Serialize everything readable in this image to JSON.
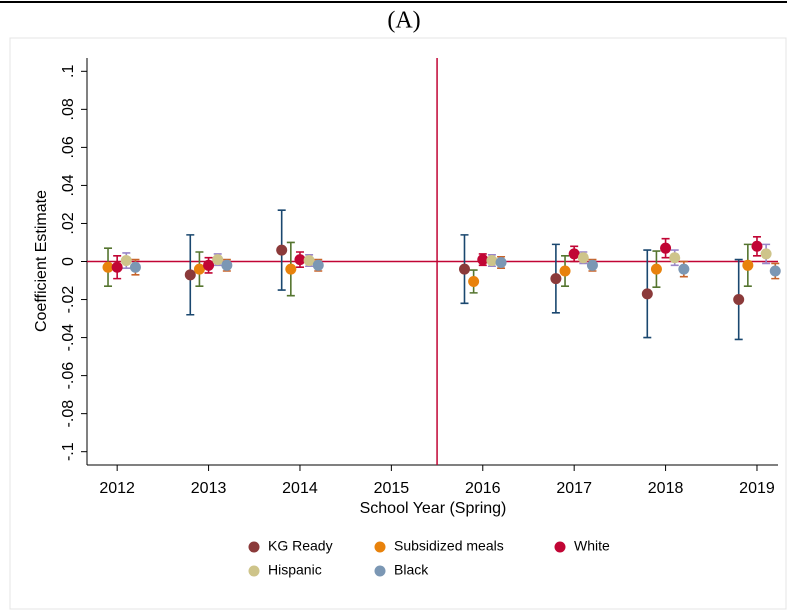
{
  "chart_data": {
    "type": "scatter",
    "title": "(A)",
    "x_label": "School Year (Spring)",
    "y_label": "Coefficient Estimate",
    "x": [
      2012,
      2013,
      2014,
      2015,
      2016,
      2017,
      2018,
      2019
    ],
    "xlim": [
      2011.67,
      2019.23
    ],
    "xticks": [
      2012,
      2013,
      2014,
      2015,
      2016,
      2017,
      2018,
      2019
    ],
    "ylim": [
      -0.107,
      0.107
    ],
    "yticks": [
      {
        "value": -0.1,
        "label": "-.1"
      },
      {
        "value": -0.08,
        "label": "-.08"
      },
      {
        "value": -0.06,
        "label": "-.06"
      },
      {
        "value": -0.04,
        "label": "-.04"
      },
      {
        "value": -0.02,
        "label": "-.02"
      },
      0,
      {
        "value": 0.02,
        "label": ".02"
      },
      {
        "value": 0.04,
        "label": ".04"
      },
      {
        "value": 0.06,
        "label": ".06"
      },
      {
        "value": 0.08,
        "label": ".08"
      },
      {
        "value": 0.1,
        "label": ".1"
      }
    ],
    "hline": 0,
    "vline": 2015.5,
    "reference_color": "#c10534",
    "series": [
      {
        "name": "KG Ready",
        "color": "#8b3a3a",
        "error_color": "#1a476f",
        "values": [
          null,
          -0.007,
          0.006,
          null,
          -0.004,
          -0.009,
          -0.017,
          -0.02
        ],
        "errors": [
          null,
          0.021,
          0.021,
          null,
          0.018,
          0.018,
          0.023,
          0.021
        ]
      },
      {
        "name": "Subsidized meals",
        "color": "#e8820c",
        "error_color": "#55752f",
        "values": [
          -0.003,
          -0.004,
          -0.004,
          null,
          -0.0105,
          -0.005,
          -0.004,
          -0.002
        ],
        "errors": [
          0.01,
          0.009,
          0.014,
          null,
          0.006,
          0.008,
          0.0095,
          0.011
        ]
      },
      {
        "name": "White",
        "color": "#c10534",
        "error_color": "#c10534",
        "values": [
          -0.003,
          -0.002,
          0.001,
          null,
          0.001,
          0.004,
          0.007,
          0.008
        ],
        "errors": [
          0.006,
          0.004,
          0.004,
          null,
          0.003,
          0.004,
          0.005,
          0.005
        ]
      },
      {
        "name": "Hispanic",
        "color": "#cec48a",
        "error_color": "#9a86c8",
        "values": [
          0.0005,
          0.001,
          0.0005,
          null,
          0.0005,
          0.002,
          0.002,
          0.004
        ],
        "errors": [
          0.004,
          0.003,
          0.003,
          null,
          0.003,
          0.003,
          0.004,
          0.005
        ]
      },
      {
        "name": "Black",
        "color": "#7b97b4",
        "error_color": "#c8642a",
        "values": [
          -0.003,
          -0.002,
          -0.002,
          null,
          -0.0005,
          -0.002,
          -0.004,
          -0.005
        ],
        "errors": [
          0.004,
          0.003,
          0.003,
          null,
          0.003,
          0.003,
          0.004,
          0.004
        ]
      }
    ]
  }
}
